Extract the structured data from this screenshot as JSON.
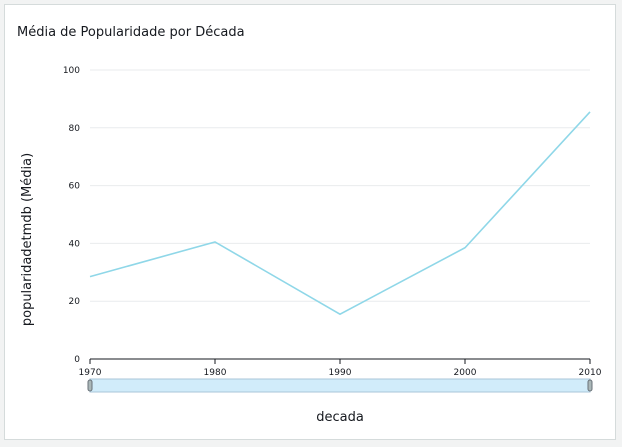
{
  "title": "Média de Popularidade por Década",
  "chart_data": {
    "type": "line",
    "title": "Média de Popularidade por Década",
    "xlabel": "decada",
    "ylabel": "popularidadetmdb (Média)",
    "x": [
      "1970",
      "1980",
      "1990",
      "2000",
      "2010"
    ],
    "series": [
      {
        "name": "",
        "values": [
          28.5,
          40.5,
          15.5,
          38.5,
          85.5
        ]
      }
    ],
    "ylim": [
      0,
      100
    ],
    "yticks": [
      0,
      20,
      40,
      60,
      80,
      100
    ],
    "grid": true,
    "legend": "none",
    "line_color": "#8fd7e8",
    "slider": {
      "range": [
        "1970",
        "2010"
      ]
    }
  }
}
